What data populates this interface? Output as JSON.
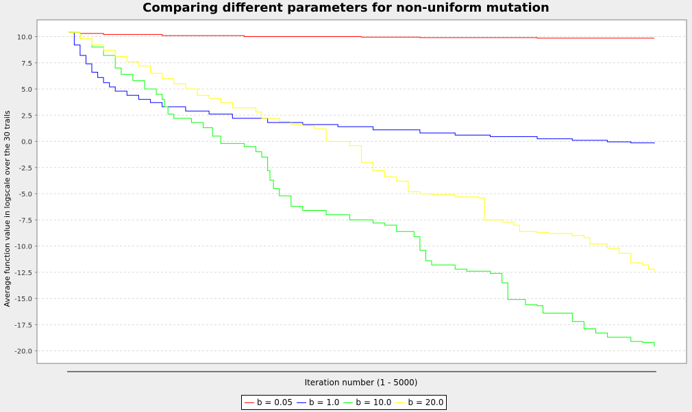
{
  "chart_data": {
    "type": "line",
    "title": "Comparing different parameters for non-uniform mutation",
    "xlabel": "Iteration number (1 - 5000)",
    "ylabel": "Average function value in logscale over the 30 trails",
    "xlim": [
      1,
      5000
    ],
    "ylim": [
      -21.2,
      11.6
    ],
    "y_ticks": [
      "10.0",
      "7.5",
      "5.0",
      "2.5",
      "0.0",
      "-2.5",
      "-5.0",
      "-7.5",
      "-10.0",
      "-12.5",
      "-15.0",
      "-17.5",
      "-20.0"
    ],
    "y_tick_values": [
      10.0,
      7.5,
      5.0,
      2.5,
      0.0,
      -2.5,
      -5.0,
      -7.5,
      -10.0,
      -12.5,
      -15.0,
      -17.5,
      -20.0
    ],
    "grid": true,
    "legend_position": "bottom",
    "series": [
      {
        "name": "b = 0.05",
        "color": "#ff0000",
        "points": [
          [
            1,
            10.4
          ],
          [
            100,
            10.3
          ],
          [
            300,
            10.2
          ],
          [
            800,
            10.1
          ],
          [
            1500,
            10.0
          ],
          [
            2000,
            10.0
          ],
          [
            2500,
            9.95
          ],
          [
            3000,
            9.9
          ],
          [
            3500,
            9.9
          ],
          [
            4000,
            9.85
          ],
          [
            4500,
            9.85
          ],
          [
            5000,
            9.85
          ]
        ]
      },
      {
        "name": "b = 1.0",
        "color": "#0000ff",
        "points": [
          [
            1,
            10.4
          ],
          [
            50,
            9.2
          ],
          [
            100,
            8.2
          ],
          [
            150,
            7.4
          ],
          [
            200,
            6.6
          ],
          [
            250,
            6.1
          ],
          [
            300,
            5.6
          ],
          [
            350,
            5.2
          ],
          [
            400,
            4.8
          ],
          [
            500,
            4.4
          ],
          [
            600,
            4.0
          ],
          [
            700,
            3.7
          ],
          [
            800,
            3.3
          ],
          [
            1000,
            2.9
          ],
          [
            1200,
            2.6
          ],
          [
            1400,
            2.2
          ],
          [
            1700,
            1.8
          ],
          [
            2000,
            1.6
          ],
          [
            2300,
            1.4
          ],
          [
            2600,
            1.1
          ],
          [
            3000,
            0.8
          ],
          [
            3300,
            0.6
          ],
          [
            3600,
            0.45
          ],
          [
            4000,
            0.25
          ],
          [
            4300,
            0.1
          ],
          [
            4600,
            -0.05
          ],
          [
            4800,
            -0.15
          ],
          [
            5000,
            -0.2
          ]
        ]
      },
      {
        "name": "b = 10.0",
        "color": "#00ff00",
        "points": [
          [
            1,
            10.4
          ],
          [
            100,
            9.8
          ],
          [
            200,
            9.0
          ],
          [
            300,
            8.2
          ],
          [
            400,
            7.0
          ],
          [
            450,
            6.4
          ],
          [
            550,
            5.8
          ],
          [
            650,
            5.0
          ],
          [
            750,
            4.5
          ],
          [
            800,
            4.0
          ],
          [
            820,
            3.3
          ],
          [
            850,
            2.6
          ],
          [
            900,
            2.2
          ],
          [
            1050,
            1.8
          ],
          [
            1150,
            1.3
          ],
          [
            1230,
            0.5
          ],
          [
            1300,
            -0.2
          ],
          [
            1500,
            -0.5
          ],
          [
            1600,
            -1.0
          ],
          [
            1650,
            -1.5
          ],
          [
            1700,
            -2.8
          ],
          [
            1720,
            -3.7
          ],
          [
            1750,
            -4.5
          ],
          [
            1800,
            -5.2
          ],
          [
            1900,
            -6.2
          ],
          [
            2000,
            -6.6
          ],
          [
            2200,
            -7.0
          ],
          [
            2400,
            -7.5
          ],
          [
            2600,
            -7.8
          ],
          [
            2700,
            -8.0
          ],
          [
            2800,
            -8.6
          ],
          [
            2950,
            -9.1
          ],
          [
            3000,
            -10.4
          ],
          [
            3050,
            -11.4
          ],
          [
            3100,
            -11.8
          ],
          [
            3300,
            -12.2
          ],
          [
            3400,
            -12.4
          ],
          [
            3600,
            -12.6
          ],
          [
            3700,
            -13.5
          ],
          [
            3750,
            -15.1
          ],
          [
            3900,
            -15.6
          ],
          [
            4000,
            -15.7
          ],
          [
            4050,
            -16.4
          ],
          [
            4300,
            -17.2
          ],
          [
            4400,
            -17.9
          ],
          [
            4500,
            -18.3
          ],
          [
            4600,
            -18.7
          ],
          [
            4800,
            -19.1
          ],
          [
            4900,
            -19.2
          ],
          [
            5000,
            -19.6
          ]
        ]
      },
      {
        "name": "b = 20.0",
        "color": "#ffff00",
        "points": [
          [
            1,
            10.4
          ],
          [
            100,
            9.8
          ],
          [
            200,
            9.2
          ],
          [
            300,
            8.7
          ],
          [
            400,
            8.1
          ],
          [
            500,
            7.6
          ],
          [
            600,
            7.2
          ],
          [
            700,
            6.5
          ],
          [
            800,
            6.0
          ],
          [
            900,
            5.5
          ],
          [
            1000,
            5.0
          ],
          [
            1100,
            4.4
          ],
          [
            1200,
            4.1
          ],
          [
            1300,
            3.7
          ],
          [
            1400,
            3.2
          ],
          [
            1600,
            2.8
          ],
          [
            1650,
            2.2
          ],
          [
            1800,
            1.9
          ],
          [
            1900,
            1.6
          ],
          [
            2000,
            1.5
          ],
          [
            2100,
            1.2
          ],
          [
            2200,
            0.0
          ],
          [
            2400,
            -0.4
          ],
          [
            2500,
            -2.0
          ],
          [
            2600,
            -2.8
          ],
          [
            2700,
            -3.4
          ],
          [
            2800,
            -3.8
          ],
          [
            2900,
            -4.8
          ],
          [
            3000,
            -5.0
          ],
          [
            3100,
            -5.1
          ],
          [
            3300,
            -5.3
          ],
          [
            3500,
            -5.4
          ],
          [
            3550,
            -7.5
          ],
          [
            3700,
            -7.7
          ],
          [
            3800,
            -8.0
          ],
          [
            3850,
            -8.6
          ],
          [
            4000,
            -8.7
          ],
          [
            4100,
            -8.8
          ],
          [
            4300,
            -9.0
          ],
          [
            4400,
            -9.2
          ],
          [
            4450,
            -9.8
          ],
          [
            4600,
            -10.2
          ],
          [
            4700,
            -10.7
          ],
          [
            4800,
            -11.6
          ],
          [
            4900,
            -11.8
          ],
          [
            4950,
            -12.2
          ],
          [
            5000,
            -12.5
          ]
        ]
      }
    ]
  }
}
